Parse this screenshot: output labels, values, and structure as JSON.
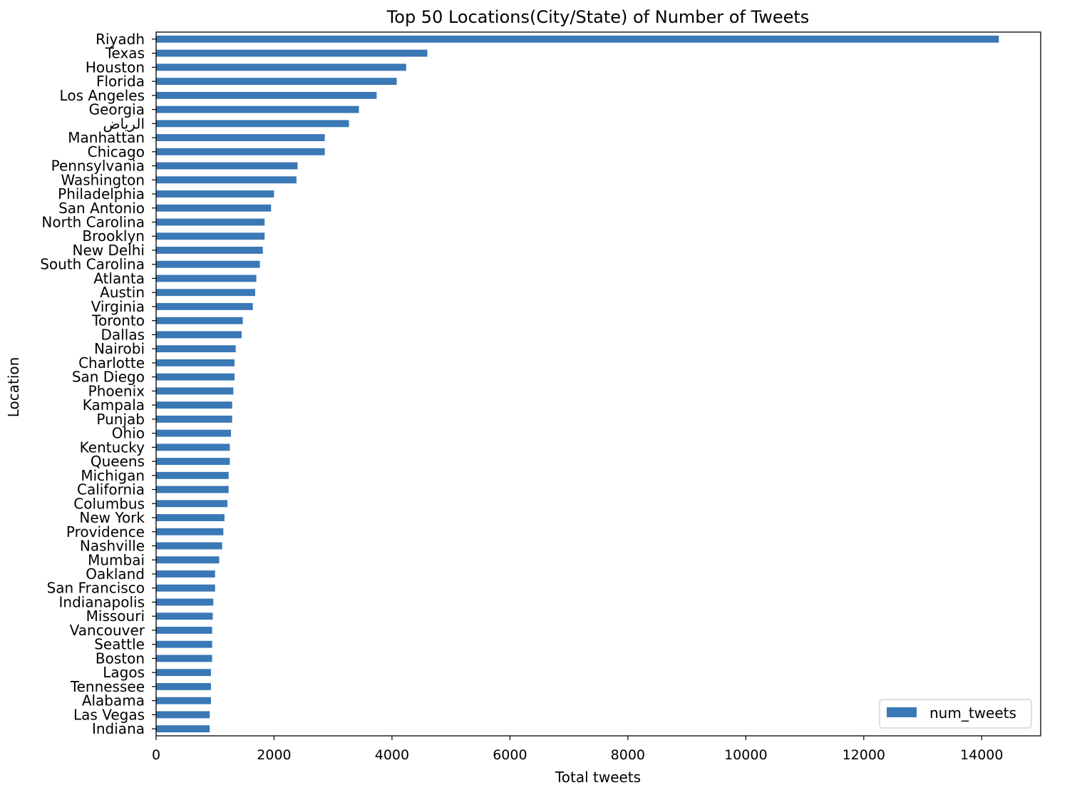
{
  "chart_data": {
    "type": "bar",
    "orientation": "horizontal",
    "title": "Top 50 Locations(City/State) of Number of Tweets",
    "xlabel": "Total tweets",
    "ylabel": "Location",
    "xlim": [
      0,
      15000
    ],
    "xticks": [
      "0",
      "2000",
      "4000",
      "6000",
      "8000",
      "10000",
      "12000",
      "14000"
    ],
    "xtick_values": [
      0,
      2000,
      4000,
      6000,
      8000,
      10000,
      12000,
      14000
    ],
    "grid": false,
    "legend": {
      "position": "lower-right",
      "entries": [
        "num_tweets"
      ]
    },
    "bar_color": "#3a78b6",
    "categories": [
      "Riyadh",
      "Texas",
      "Houston",
      "Florida",
      "Los Angeles",
      "Georgia",
      "الرياض",
      "Manhattan",
      "Chicago",
      "Pennsylvania",
      "Washington",
      "Philadelphia",
      "San Antonio",
      "North Carolina",
      "Brooklyn",
      "New Delhi",
      "South Carolina",
      "Atlanta",
      "Austin",
      "Virginia",
      "Toronto",
      "Dallas",
      "Nairobi",
      "Charlotte",
      "San Diego",
      "Phoenix",
      "Kampala",
      "Punjab",
      "Ohio",
      "Kentucky",
      "Queens",
      "Michigan",
      "California",
      "Columbus",
      "New York",
      "Providence",
      "Nashville",
      "Mumbai",
      "Oakland",
      "San Francisco",
      "Indianapolis",
      "Missouri",
      "Vancouver",
      "Seattle",
      "Boston",
      "Lagos",
      "Tennessee",
      "Alabama",
      "Las Vegas",
      "Indiana"
    ],
    "series": [
      {
        "name": "num_tweets",
        "values": [
          14290,
          4600,
          4240,
          4080,
          3740,
          3440,
          3270,
          2860,
          2860,
          2400,
          2380,
          2000,
          1950,
          1840,
          1840,
          1810,
          1760,
          1700,
          1680,
          1640,
          1470,
          1450,
          1350,
          1330,
          1330,
          1310,
          1290,
          1290,
          1270,
          1250,
          1250,
          1230,
          1230,
          1210,
          1160,
          1140,
          1120,
          1070,
          1000,
          1000,
          970,
          960,
          950,
          950,
          950,
          930,
          930,
          930,
          910,
          910
        ]
      }
    ]
  }
}
